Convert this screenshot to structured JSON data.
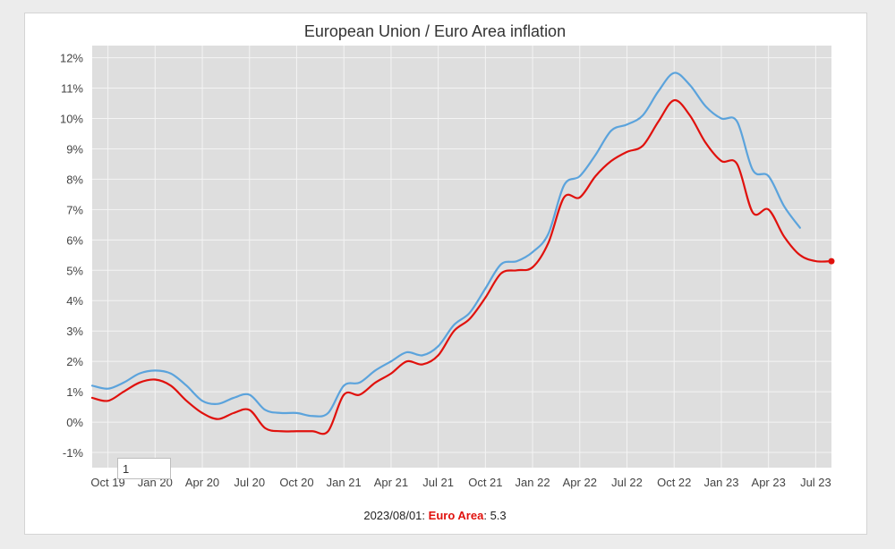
{
  "chart_data": {
    "type": "line",
    "title": "European Union / Euro Area inflation",
    "ylabel": "",
    "xlabel": "",
    "ylim": [
      -1.5,
      12.4
    ],
    "yticks": [
      12,
      11,
      10,
      9,
      8,
      7,
      6,
      5,
      4,
      3,
      2,
      1,
      0,
      -1
    ],
    "ytick_labels": [
      "12%",
      "11%",
      "10%",
      "9%",
      "8%",
      "7%",
      "6%",
      "5%",
      "4%",
      "3%",
      "2%",
      "1%",
      "0%",
      "-1%"
    ],
    "x_start": "2019-09",
    "x_end": "2023-08",
    "xtick_labels": [
      "Oct 19",
      "Jan 20",
      "Apr 20",
      "Jul 20",
      "Oct 20",
      "Jan 21",
      "Apr 21",
      "Jul 21",
      "Oct 21",
      "Jan 22",
      "Apr 22",
      "Jul 22",
      "Oct 22",
      "Jan 23",
      "Apr 23",
      "Jul 23"
    ],
    "xtick_dates": [
      "2019-10",
      "2020-01",
      "2020-04",
      "2020-07",
      "2020-10",
      "2021-01",
      "2021-04",
      "2021-07",
      "2021-10",
      "2022-01",
      "2022-04",
      "2022-07",
      "2022-10",
      "2023-01",
      "2023-04",
      "2023-07"
    ],
    "grid": true,
    "series": [
      {
        "name": "",
        "color": "#5ba3dc",
        "x": [
          "2019-09",
          "2019-10",
          "2019-11",
          "2019-12",
          "2020-01",
          "2020-02",
          "2020-03",
          "2020-04",
          "2020-05",
          "2020-06",
          "2020-07",
          "2020-08",
          "2020-09",
          "2020-10",
          "2020-11",
          "2020-12",
          "2021-01",
          "2021-02",
          "2021-03",
          "2021-04",
          "2021-05",
          "2021-06",
          "2021-07",
          "2021-08",
          "2021-09",
          "2021-10",
          "2021-11",
          "2021-12",
          "2022-01",
          "2022-02",
          "2022-03",
          "2022-04",
          "2022-05",
          "2022-06",
          "2022-07",
          "2022-08",
          "2022-09",
          "2022-10",
          "2022-11",
          "2022-12",
          "2023-01",
          "2023-02",
          "2023-03",
          "2023-04",
          "2023-05",
          "2023-06",
          "2023-07"
        ],
        "values": [
          1.2,
          1.1,
          1.3,
          1.6,
          1.7,
          1.6,
          1.2,
          0.7,
          0.6,
          0.8,
          0.9,
          0.4,
          0.3,
          0.3,
          0.2,
          0.3,
          1.2,
          1.3,
          1.7,
          2.0,
          2.3,
          2.2,
          2.5,
          3.2,
          3.6,
          4.4,
          5.2,
          5.3,
          5.6,
          6.2,
          7.8,
          8.1,
          8.8,
          9.6,
          9.8,
          10.1,
          10.9,
          11.5,
          11.1,
          10.4,
          10.0,
          9.9,
          8.3,
          8.1,
          7.1,
          6.4,
          null
        ]
      },
      {
        "name": "Euro Area",
        "color": "#e0110d",
        "x": [
          "2019-09",
          "2019-10",
          "2019-11",
          "2019-12",
          "2020-01",
          "2020-02",
          "2020-03",
          "2020-04",
          "2020-05",
          "2020-06",
          "2020-07",
          "2020-08",
          "2020-09",
          "2020-10",
          "2020-11",
          "2020-12",
          "2021-01",
          "2021-02",
          "2021-03",
          "2021-04",
          "2021-05",
          "2021-06",
          "2021-07",
          "2021-08",
          "2021-09",
          "2021-10",
          "2021-11",
          "2021-12",
          "2022-01",
          "2022-02",
          "2022-03",
          "2022-04",
          "2022-05",
          "2022-06",
          "2022-07",
          "2022-08",
          "2022-09",
          "2022-10",
          "2022-11",
          "2022-12",
          "2023-01",
          "2023-02",
          "2023-03",
          "2023-04",
          "2023-05",
          "2023-06",
          "2023-07",
          "2023-08"
        ],
        "values": [
          0.8,
          0.7,
          1.0,
          1.3,
          1.4,
          1.2,
          0.7,
          0.3,
          0.1,
          0.3,
          0.4,
          -0.2,
          -0.3,
          -0.3,
          -0.3,
          -0.3,
          0.9,
          0.9,
          1.3,
          1.6,
          2.0,
          1.9,
          2.2,
          3.0,
          3.4,
          4.1,
          4.9,
          5.0,
          5.1,
          5.9,
          7.4,
          7.4,
          8.1,
          8.6,
          8.9,
          9.1,
          9.9,
          10.6,
          10.1,
          9.2,
          8.6,
          8.5,
          6.9,
          7.0,
          6.1,
          5.5,
          5.3,
          5.3
        ]
      }
    ]
  },
  "range_input": {
    "value": "1"
  },
  "status": {
    "date": "2023/08/01:",
    "series_name": "Euro Area",
    "separator": ":",
    "value": "5.3"
  }
}
